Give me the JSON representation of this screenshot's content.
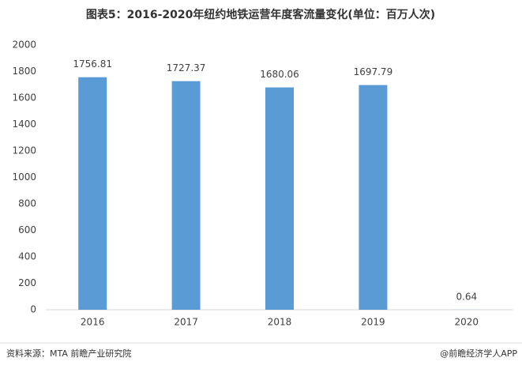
{
  "chart_data": {
    "type": "bar",
    "title": "图表5：2016-2020年纽约地铁运营年度客流量变化(单位：百万人次)",
    "categories": [
      "2016",
      "2017",
      "2018",
      "2019",
      "2020"
    ],
    "values": [
      1756.81,
      1727.37,
      1680.06,
      1697.79,
      0.64
    ],
    "color": "#5b9bd5",
    "ylim": [
      0,
      2000
    ],
    "yticks": [
      0,
      200,
      400,
      600,
      800,
      1000,
      1200,
      1400,
      1600,
      1800,
      2000
    ],
    "grid": false
  },
  "footer": {
    "source": "资料来源：MTA 前瞻产业研究院",
    "brand": "@前瞻经济学人APP"
  }
}
